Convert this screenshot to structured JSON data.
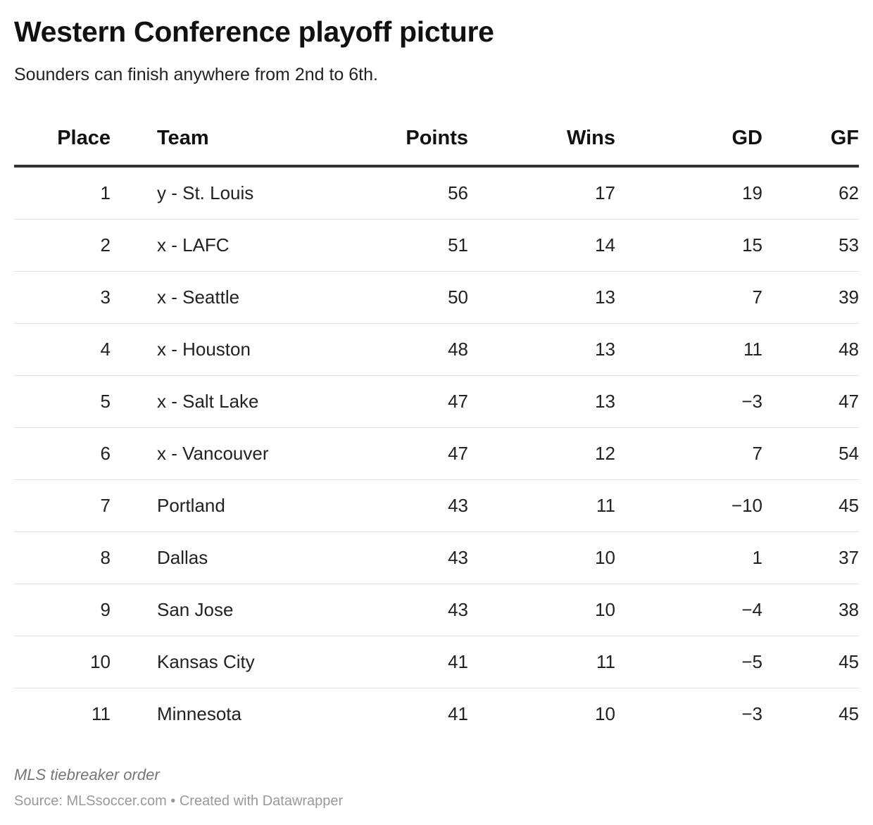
{
  "title": "Western Conference playoff picture",
  "subtitle": "Sounders can finish anywhere from 2nd to 6th.",
  "notes": "MLS tiebreaker order",
  "source": "Source: MLSsoccer.com • Created with Datawrapper",
  "colors": {
    "header_rule": "#333333",
    "row_rule": "#e2e2e2",
    "note_text": "#777777"
  },
  "chart_data": {
    "type": "table",
    "columns": [
      "Place",
      "Team",
      "Points",
      "Wins",
      "GD",
      "GF"
    ],
    "rows": [
      [
        "1",
        "y - St. Louis",
        "56",
        "17",
        "19",
        "62"
      ],
      [
        "2",
        "x - LAFC",
        "51",
        "14",
        "15",
        "53"
      ],
      [
        "3",
        "x - Seattle",
        "50",
        "13",
        "7",
        "39"
      ],
      [
        "4",
        "x - Houston",
        "48",
        "13",
        "11",
        "48"
      ],
      [
        "5",
        "x - Salt Lake",
        "47",
        "13",
        "−3",
        "47"
      ],
      [
        "6",
        "x - Vancouver",
        "47",
        "12",
        "7",
        "54"
      ],
      [
        "7",
        "Portland",
        "43",
        "11",
        "−10",
        "45"
      ],
      [
        "8",
        "Dallas",
        "43",
        "10",
        "1",
        "37"
      ],
      [
        "9",
        "San Jose",
        "43",
        "10",
        "−4",
        "38"
      ],
      [
        "10",
        "Kansas City",
        "41",
        "11",
        "−5",
        "45"
      ],
      [
        "11",
        "Minnesota",
        "41",
        "10",
        "−3",
        "45"
      ]
    ]
  }
}
